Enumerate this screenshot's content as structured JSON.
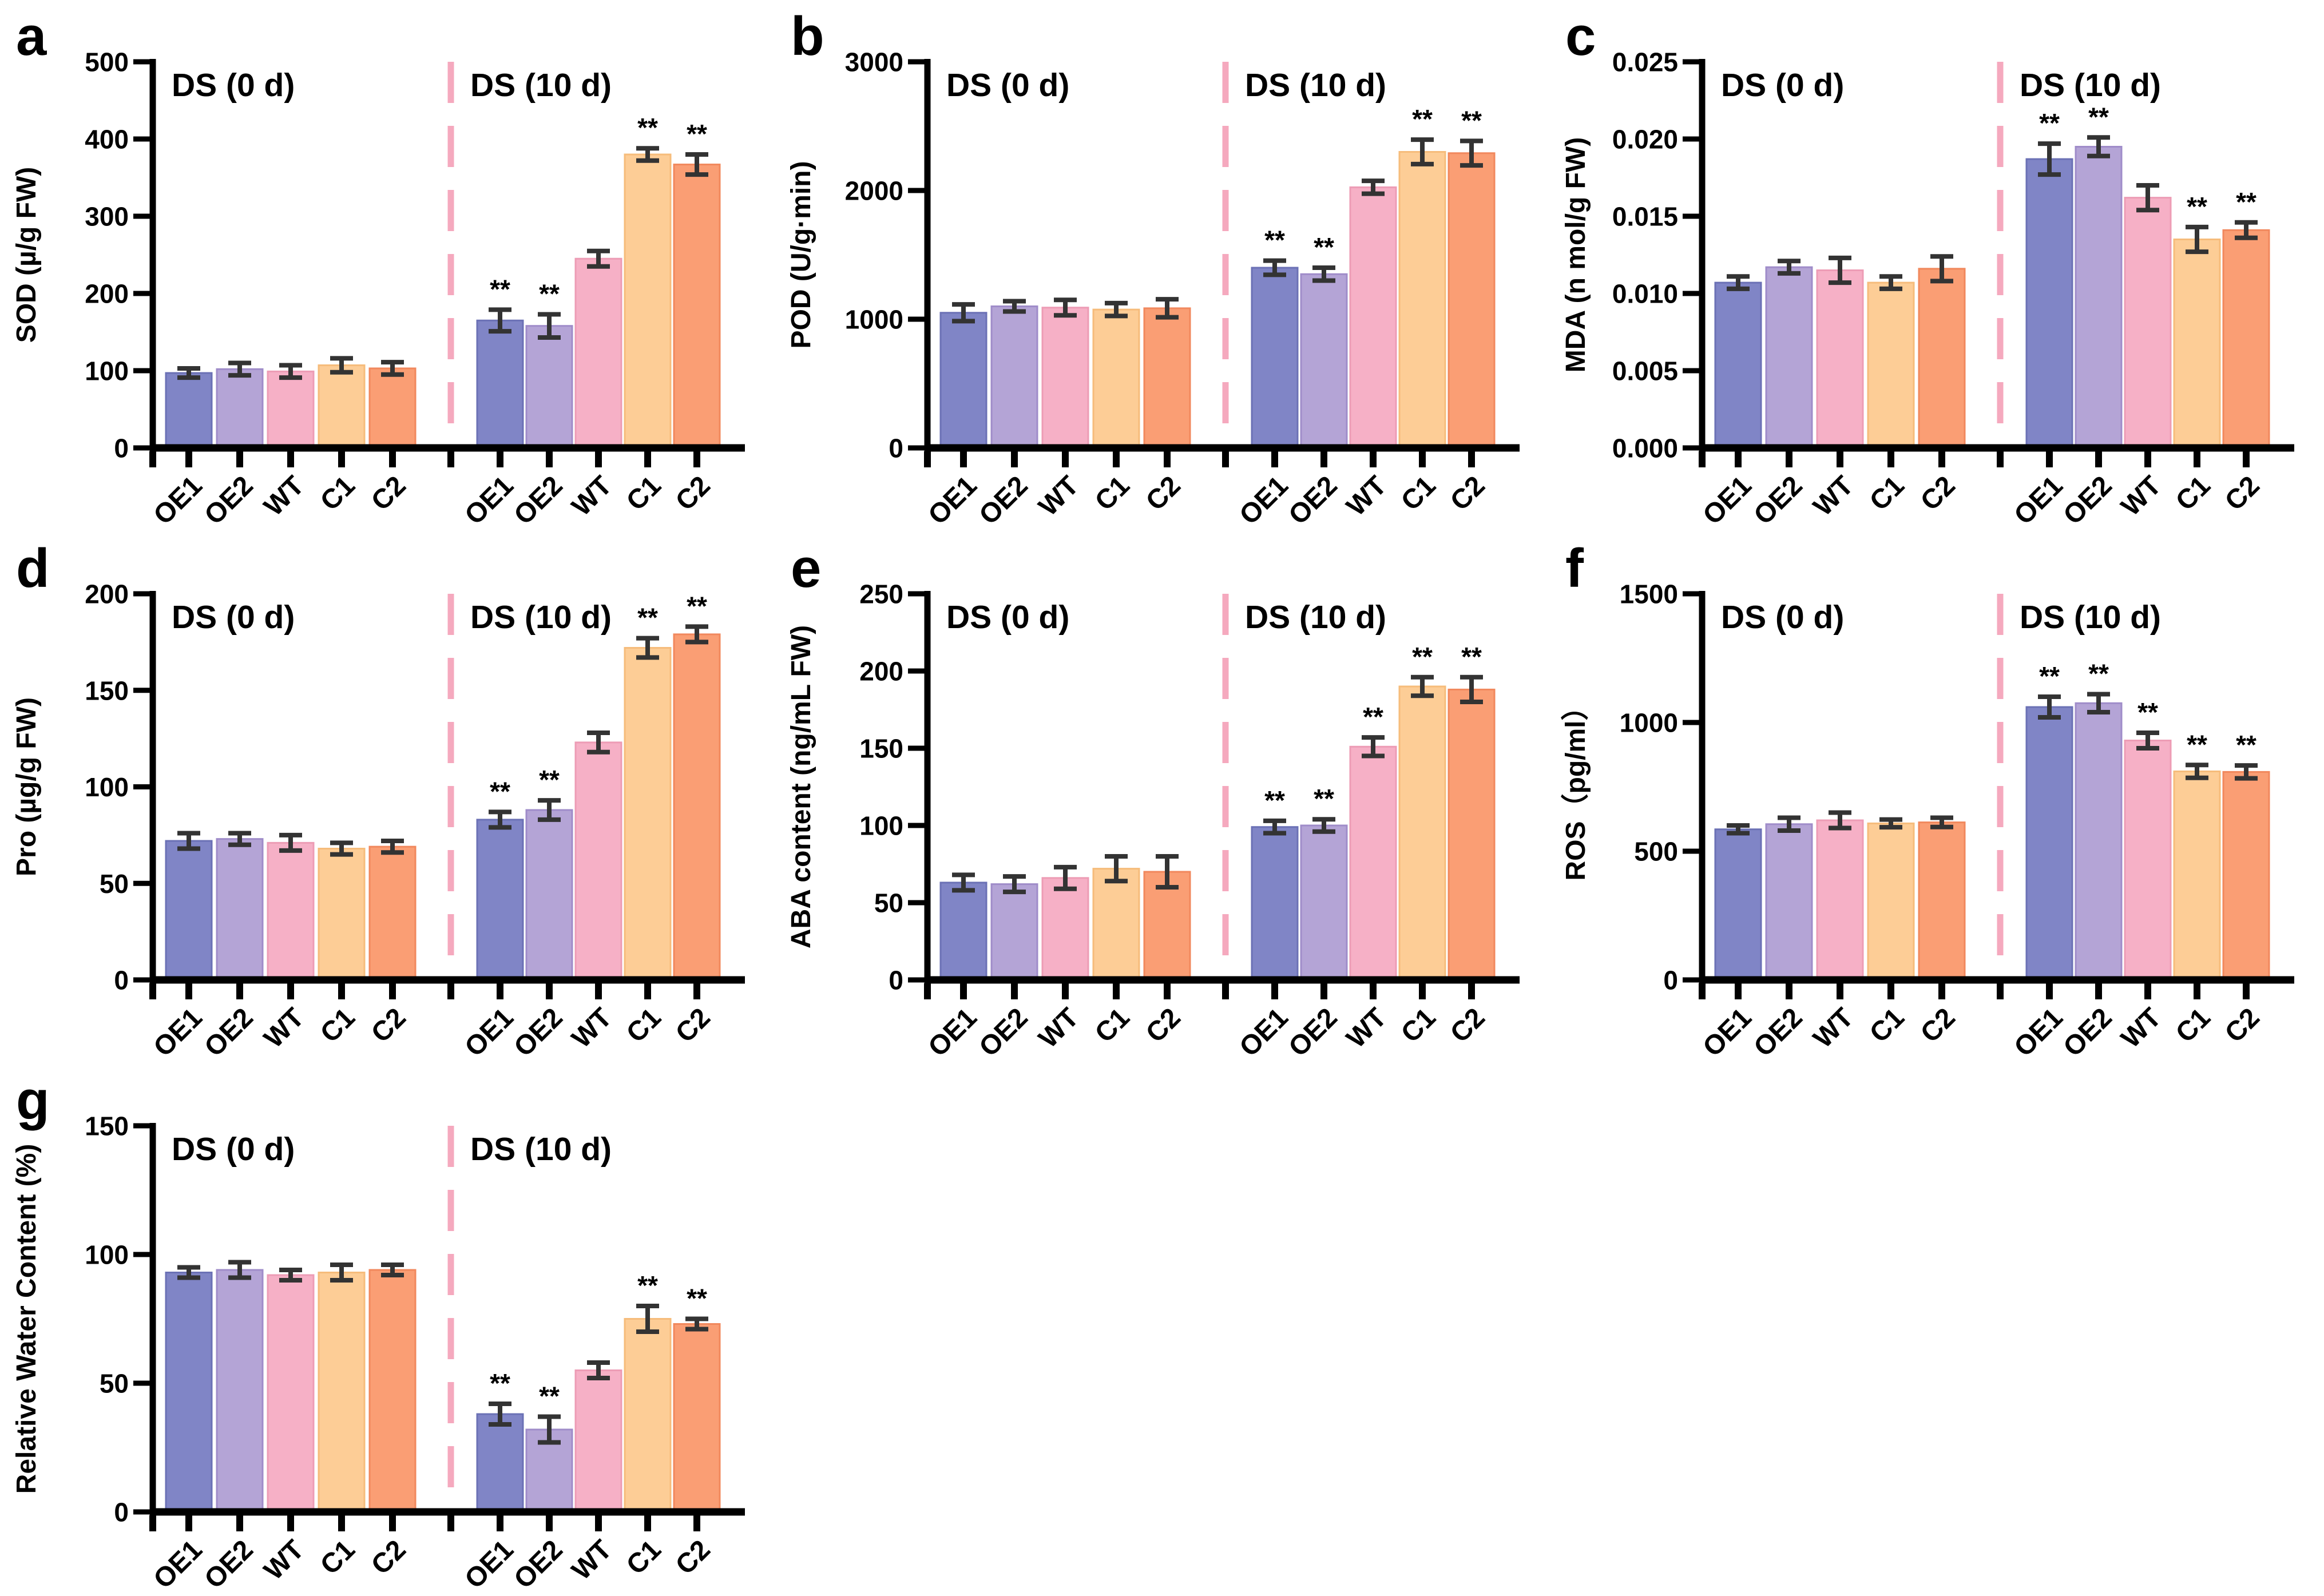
{
  "style": {
    "background": "#ffffff",
    "axis_color": "#000000",
    "text_color": "#000000",
    "error_bar_color": "#333333",
    "separator_color": "#F5A9BE",
    "bar_fills": [
      "#8085C6",
      "#B4A4D6",
      "#F6B0C6",
      "#FDCD96",
      "#FA9E74"
    ],
    "bar_borders": [
      "#6B71B5",
      "#9F8CC9",
      "#ED9CB5",
      "#F6BC7B",
      "#F1885D"
    ]
  },
  "categories": [
    "OE1",
    "OE2",
    "WT",
    "C1",
    "C2"
  ],
  "group_labels": [
    "DS (0 d)",
    "DS (10 d)"
  ],
  "significance_symbol": "**",
  "chart_data": [
    {
      "type": "bar",
      "panel_letter": "a",
      "ylabel": "SOD (µ/g FW)",
      "ylim": [
        0,
        500
      ],
      "yticks": [
        0,
        100,
        200,
        300,
        400,
        500
      ],
      "ytick_labels": [
        "0",
        "100",
        "200",
        "300",
        "400",
        "500"
      ],
      "categories": [
        "OE1",
        "OE2",
        "WT",
        "C1",
        "C2"
      ],
      "series": [
        {
          "name": "DS (0 d)",
          "values": [
            97,
            102,
            99,
            107,
            103
          ],
          "errors": [
            6,
            8,
            8,
            9,
            8
          ],
          "sig": [
            "",
            "",
            "",
            "",
            ""
          ]
        },
        {
          "name": "DS (10 d)",
          "values": [
            165,
            158,
            245,
            380,
            367
          ],
          "errors": [
            14,
            15,
            10,
            8,
            13
          ],
          "sig": [
            "**",
            "**",
            "",
            "**",
            "**"
          ]
        }
      ]
    },
    {
      "type": "bar",
      "panel_letter": "b",
      "ylabel": "POD (U/g·min)",
      "ylim": [
        0,
        3000
      ],
      "yticks": [
        0,
        1000,
        2000,
        3000
      ],
      "ytick_labels": [
        "0",
        "1000",
        "2000",
        "3000"
      ],
      "categories": [
        "OE1",
        "OE2",
        "WT",
        "C1",
        "C2"
      ],
      "series": [
        {
          "name": "DS (0 d)",
          "values": [
            1050,
            1100,
            1090,
            1075,
            1085
          ],
          "errors": [
            65,
            40,
            60,
            50,
            70
          ],
          "sig": [
            "",
            "",
            "",
            "",
            ""
          ]
        },
        {
          "name": "DS (10 d)",
          "values": [
            1400,
            1350,
            2025,
            2300,
            2290
          ],
          "errors": [
            55,
            50,
            50,
            95,
            95
          ],
          "sig": [
            "**",
            "**",
            "",
            "**",
            "**"
          ]
        }
      ]
    },
    {
      "type": "bar",
      "panel_letter": "c",
      "ylabel": "MDA (n mol/g FW)",
      "ylim": [
        0,
        0.025
      ],
      "yticks": [
        0,
        0.005,
        0.01,
        0.015,
        0.02,
        0.025
      ],
      "ytick_labels": [
        "0.000",
        "0.005",
        "0.010",
        "0.015",
        "0.020",
        "0.025"
      ],
      "categories": [
        "OE1",
        "OE2",
        "WT",
        "C1",
        "C2"
      ],
      "series": [
        {
          "name": "DS (0 d)",
          "values": [
            0.0107,
            0.0117,
            0.0115,
            0.0107,
            0.0116
          ],
          "errors": [
            0.0004,
            0.0004,
            0.0008,
            0.0004,
            0.0008
          ],
          "sig": [
            "",
            "",
            "",
            "",
            ""
          ]
        },
        {
          "name": "DS (10 d)",
          "values": [
            0.0187,
            0.0195,
            0.0162,
            0.0135,
            0.0141
          ],
          "errors": [
            0.001,
            0.0006,
            0.0008,
            0.0008,
            0.0005
          ],
          "sig": [
            "**",
            "**",
            "",
            "**",
            "**"
          ]
        }
      ]
    },
    {
      "type": "bar",
      "panel_letter": "d",
      "ylabel": "Pro (µg/g FW)",
      "ylim": [
        0,
        200
      ],
      "yticks": [
        0,
        50,
        100,
        150,
        200
      ],
      "ytick_labels": [
        "0",
        "50",
        "100",
        "150",
        "200"
      ],
      "categories": [
        "OE1",
        "OE2",
        "WT",
        "C1",
        "C2"
      ],
      "series": [
        {
          "name": "DS (0 d)",
          "values": [
            72,
            73,
            71,
            68,
            69
          ],
          "errors": [
            4,
            3,
            4,
            3,
            3
          ],
          "sig": [
            "",
            "",
            "",
            "",
            ""
          ]
        },
        {
          "name": "DS (10 d)",
          "values": [
            83,
            88,
            123,
            172,
            179
          ],
          "errors": [
            4,
            5,
            5,
            5,
            4
          ],
          "sig": [
            "**",
            "**",
            "",
            "**",
            "**"
          ]
        }
      ]
    },
    {
      "type": "bar",
      "panel_letter": "e",
      "ylabel": "ABA content (ng/mL FW)",
      "ylim": [
        0,
        250
      ],
      "yticks": [
        0,
        50,
        100,
        150,
        200,
        250
      ],
      "ytick_labels": [
        "0",
        "50",
        "100",
        "150",
        "200",
        "250"
      ],
      "categories": [
        "OE1",
        "OE2",
        "WT",
        "C1",
        "C2"
      ],
      "series": [
        {
          "name": "DS (0 d)",
          "values": [
            63,
            62,
            66,
            72,
            70
          ],
          "errors": [
            5,
            5,
            7,
            8,
            10
          ],
          "sig": [
            "",
            "",
            "",
            "",
            ""
          ]
        },
        {
          "name": "DS (10 d)",
          "values": [
            99,
            100,
            151,
            190,
            188
          ],
          "errors": [
            4,
            4,
            6,
            6,
            8
          ],
          "sig": [
            "**",
            "**",
            "**",
            "**",
            "**"
          ]
        }
      ]
    },
    {
      "type": "bar",
      "panel_letter": "f",
      "ylabel": "ROS（pg/ml）",
      "ylim": [
        0,
        1500
      ],
      "yticks": [
        0,
        500,
        1000,
        1500
      ],
      "ytick_labels": [
        "0",
        "500",
        "1000",
        "1500"
      ],
      "categories": [
        "OE1",
        "OE2",
        "WT",
        "C1",
        "C2"
      ],
      "series": [
        {
          "name": "DS (0 d)",
          "values": [
            585,
            605,
            620,
            608,
            612
          ],
          "errors": [
            15,
            25,
            30,
            15,
            18
          ],
          "sig": [
            "",
            "",
            "",
            "",
            ""
          ]
        },
        {
          "name": "DS (10 d)",
          "values": [
            1060,
            1075,
            930,
            810,
            808
          ],
          "errors": [
            40,
            35,
            30,
            25,
            25
          ],
          "sig": [
            "**",
            "**",
            "**",
            "**",
            "**"
          ]
        }
      ]
    },
    {
      "type": "bar",
      "panel_letter": "g",
      "ylabel": "Relative Water Content (%)",
      "ylim": [
        0,
        150
      ],
      "yticks": [
        0,
        50,
        100,
        150
      ],
      "ytick_labels": [
        "0",
        "50",
        "100",
        "150"
      ],
      "categories": [
        "OE1",
        "OE2",
        "WT",
        "C1",
        "C2"
      ],
      "series": [
        {
          "name": "DS (0 d)",
          "values": [
            93,
            94,
            92,
            93,
            94
          ],
          "errors": [
            2,
            3,
            2,
            3,
            2
          ],
          "sig": [
            "",
            "",
            "",
            "",
            ""
          ]
        },
        {
          "name": "DS (10 d)",
          "values": [
            38,
            32,
            55,
            75,
            73
          ],
          "errors": [
            4,
            5,
            3,
            5,
            2
          ],
          "sig": [
            "**",
            "**",
            "",
            "**",
            "**"
          ]
        }
      ]
    }
  ]
}
